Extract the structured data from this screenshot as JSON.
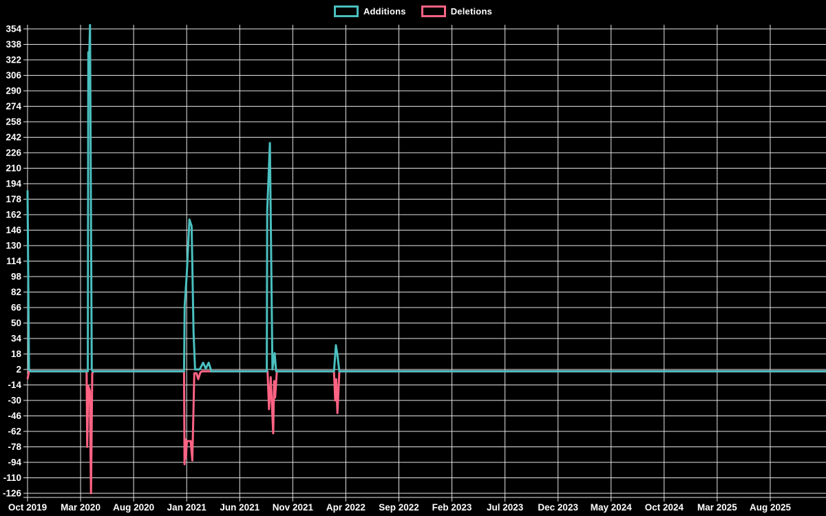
{
  "chart_data": {
    "type": "line",
    "title": "",
    "background": "#000000",
    "grid": true,
    "grid_color": "#e6e6e6",
    "text_color": "#ffffff",
    "legend_position": "top",
    "x_unit": "weeks since Oct 2019",
    "x_range_weeks": [
      0,
      327
    ],
    "x_tick_labels": [
      "Oct 2019",
      "Mar 2020",
      "Aug 2020",
      "Jan 2021",
      "Jun 2021",
      "Nov 2021",
      "Apr 2022",
      "Sep 2022",
      "Feb 2023",
      "Jul 2023",
      "Dec 2023",
      "May 2024",
      "Oct 2024",
      "Mar 2025",
      "Aug 2025"
    ],
    "y_axis": {
      "min": -126,
      "max": 354,
      "step": 16
    },
    "y_tick_labels": [
      "354",
      "338",
      "322",
      "306",
      "290",
      "274",
      "258",
      "242",
      "226",
      "210",
      "194",
      "178",
      "162",
      "146",
      "130",
      "114",
      "98",
      "82",
      "66",
      "50",
      "34",
      "18",
      "2",
      "-14",
      "-30",
      "-46",
      "-62",
      "-78",
      "-94",
      "-110",
      "-126"
    ],
    "series": [
      {
        "name": "Deletions",
        "color": "#ff6384",
        "points": [
          [
            0,
            -8
          ],
          [
            0.6,
            0
          ],
          [
            24.2,
            0
          ],
          [
            24.45,
            -78
          ],
          [
            24.8,
            -15
          ],
          [
            25.5,
            -20
          ],
          [
            26.0,
            -126
          ],
          [
            26.5,
            -2
          ],
          [
            27,
            0
          ],
          [
            64.1,
            0
          ],
          [
            64.3,
            -96
          ],
          [
            64.55,
            -70
          ],
          [
            64.8,
            -90
          ],
          [
            65.3,
            -72
          ],
          [
            66.8,
            -72
          ],
          [
            67.5,
            -92
          ],
          [
            68.3,
            -2
          ],
          [
            69.2,
            -2
          ],
          [
            69.9,
            -8
          ],
          [
            70.8,
            -1
          ],
          [
            71.5,
            0
          ],
          [
            98.3,
            0
          ],
          [
            98.9,
            -39
          ],
          [
            99.6,
            -6
          ],
          [
            100.6,
            -64
          ],
          [
            101.0,
            -10
          ],
          [
            101.4,
            -27
          ],
          [
            102.1,
            0
          ],
          [
            125.5,
            0
          ],
          [
            126.0,
            -30
          ],
          [
            126.4,
            -8
          ],
          [
            126.9,
            -43
          ],
          [
            127.7,
            0
          ],
          [
            327,
            0
          ]
        ]
      },
      {
        "name": "Additions",
        "color": "#4bc0c0",
        "points": [
          [
            0,
            187
          ],
          [
            0.6,
            2
          ],
          [
            1.2,
            0
          ],
          [
            24.7,
            0
          ],
          [
            24.9,
            330
          ],
          [
            25.1,
            310
          ],
          [
            25.6,
            358
          ],
          [
            26.3,
            2
          ],
          [
            26.6,
            0
          ],
          [
            64.1,
            0
          ],
          [
            64.35,
            68
          ],
          [
            65.2,
            100
          ],
          [
            66.3,
            157
          ],
          [
            67.2,
            150
          ],
          [
            68.0,
            40
          ],
          [
            68.6,
            2
          ],
          [
            70.5,
            2
          ],
          [
            71.9,
            9
          ],
          [
            73.0,
            3
          ],
          [
            74.2,
            9
          ],
          [
            75.3,
            0
          ],
          [
            98.0,
            0
          ],
          [
            98.15,
            166
          ],
          [
            99.25,
            236
          ],
          [
            100.3,
            2
          ],
          [
            101.2,
            19
          ],
          [
            101.8,
            0
          ],
          [
            125.5,
            0
          ],
          [
            126.3,
            27
          ],
          [
            126.9,
            17
          ],
          [
            127.7,
            0
          ],
          [
            327,
            0
          ]
        ]
      }
    ],
    "legend": [
      {
        "label": "Additions",
        "color": "#4bc0c0"
      },
      {
        "label": "Deletions",
        "color": "#ff6384"
      }
    ]
  }
}
